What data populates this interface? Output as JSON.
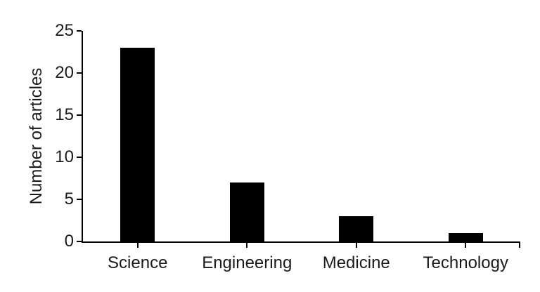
{
  "chart_data": {
    "type": "bar",
    "categories": [
      "Science",
      "Engineering",
      "Medicine",
      "Technology"
    ],
    "values": [
      23,
      7,
      3,
      1
    ],
    "title": "",
    "xlabel": "",
    "ylabel": "Number of articles",
    "ylim": [
      0,
      25
    ],
    "yticks": [
      0,
      5,
      10,
      15,
      20,
      25
    ],
    "grid": false,
    "legend": "none",
    "bar_color": "#000000",
    "axis_color": "#000000",
    "text_color": "#1a1a1a",
    "background_color": "#ffffff"
  }
}
